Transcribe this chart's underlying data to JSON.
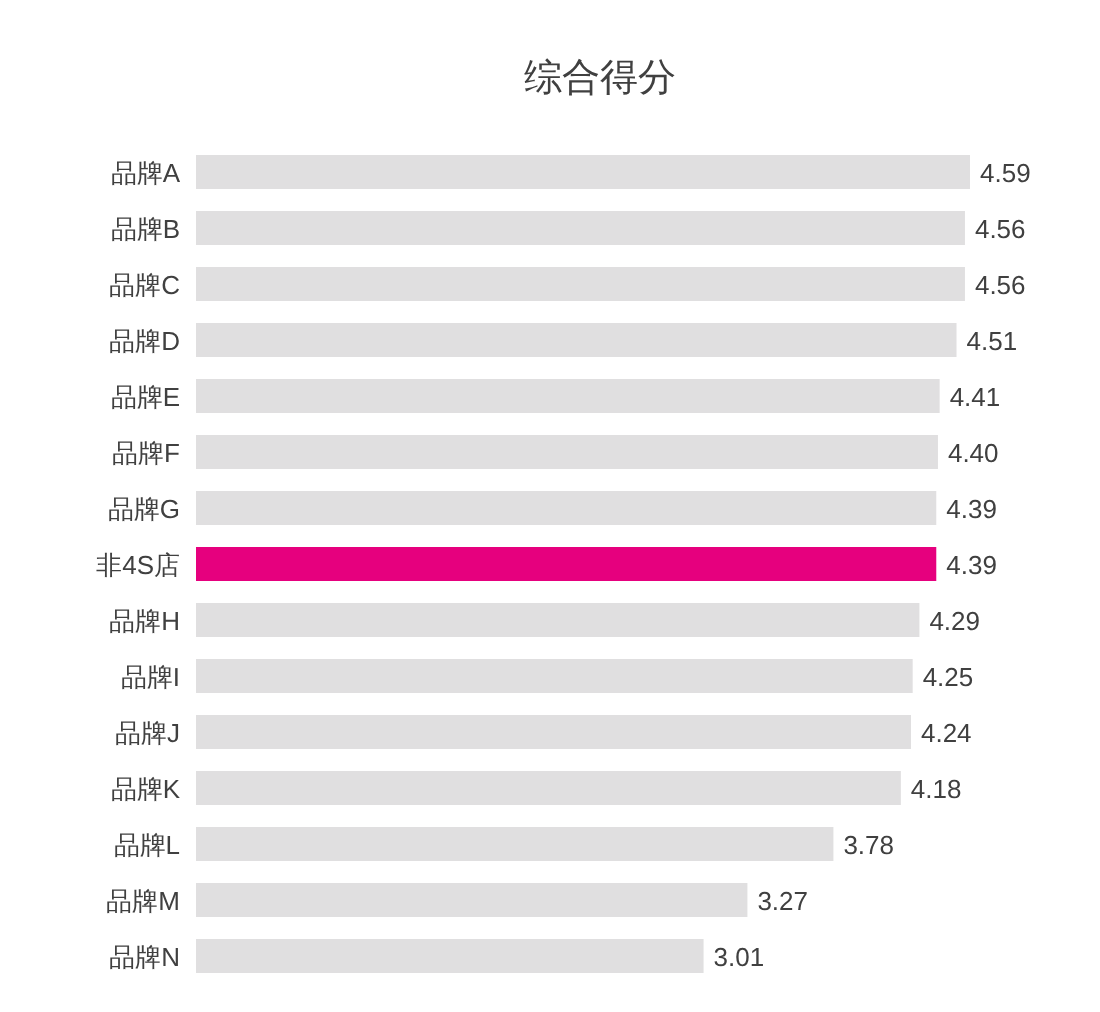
{
  "chart_data": {
    "type": "bar",
    "orientation": "horizontal",
    "title": "综合得分",
    "categories": [
      "品牌A",
      "品牌B",
      "品牌C",
      "品牌D",
      "品牌E",
      "品牌F",
      "品牌G",
      "非4S店",
      "品牌H",
      "品牌I",
      "品牌J",
      "品牌K",
      "品牌L",
      "品牌M",
      "品牌N"
    ],
    "values": [
      4.59,
      4.56,
      4.56,
      4.51,
      4.41,
      4.4,
      4.39,
      4.39,
      4.29,
      4.25,
      4.24,
      4.18,
      3.78,
      3.27,
      3.01
    ],
    "colors": [
      "#e0dfe0",
      "#e0dfe0",
      "#e0dfe0",
      "#e0dfe0",
      "#e0dfe0",
      "#e0dfe0",
      "#e0dfe0",
      "#e6007e",
      "#e0dfe0",
      "#e0dfe0",
      "#e0dfe0",
      "#e0dfe0",
      "#e0dfe0",
      "#e0dfe0",
      "#e0dfe0"
    ],
    "value_labels": [
      "4.59",
      "4.56",
      "4.56",
      "4.51",
      "4.41",
      "4.40",
      "4.39",
      "4.39",
      "4.29",
      "4.25",
      "4.24",
      "4.18",
      "3.78",
      "3.27",
      "3.01"
    ]
  }
}
